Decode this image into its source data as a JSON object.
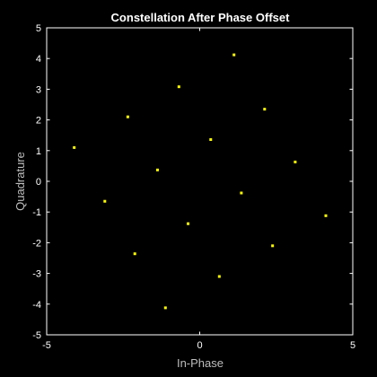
{
  "chart_data": {
    "type": "scatter",
    "title": "Constellation After Phase Offset",
    "xlabel": "In-Phase",
    "ylabel": "Quadrature",
    "xlim": [
      -5,
      5
    ],
    "ylim": [
      -5,
      5
    ],
    "xticks": [
      -5,
      0,
      5
    ],
    "yticks": [
      -5,
      -4,
      -3,
      -2,
      -1,
      0,
      1,
      2,
      3,
      4,
      5
    ],
    "grid": false,
    "legend": "none",
    "series": [
      {
        "points": [
          {
            "x": 1.12,
            "y": 4.12
          },
          {
            "x": -0.68,
            "y": 3.08
          },
          {
            "x": 2.12,
            "y": 2.35
          },
          {
            "x": -2.35,
            "y": 2.1
          },
          {
            "x": 0.36,
            "y": 1.36
          },
          {
            "x": -4.1,
            "y": 1.1
          },
          {
            "x": 3.12,
            "y": 0.63
          },
          {
            "x": -1.38,
            "y": 0.37
          },
          {
            "x": 1.36,
            "y": -0.38
          },
          {
            "x": -3.1,
            "y": -0.65
          },
          {
            "x": 4.12,
            "y": -1.12
          },
          {
            "x": -0.38,
            "y": -1.38
          },
          {
            "x": 2.38,
            "y": -2.1
          },
          {
            "x": -2.12,
            "y": -2.36
          },
          {
            "x": 0.64,
            "y": -3.1
          },
          {
            "x": -1.12,
            "y": -4.12
          }
        ]
      }
    ]
  },
  "colors": {
    "background": "#000000",
    "axes": "#000000",
    "axis_line": "#ffffff",
    "marker": "#ffff00",
    "label_text": "#bdbdbd"
  }
}
